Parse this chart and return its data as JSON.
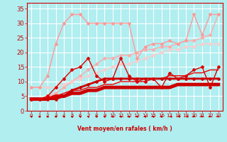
{
  "x": [
    0,
    1,
    2,
    3,
    4,
    5,
    6,
    7,
    8,
    9,
    10,
    11,
    12,
    13,
    14,
    15,
    16,
    17,
    18,
    19,
    20,
    21,
    22,
    23
  ],
  "lines": [
    {
      "y": [
        8,
        8,
        12,
        23,
        30,
        33,
        33,
        30,
        30,
        30,
        30,
        30,
        30,
        18,
        22,
        23,
        23,
        24,
        23,
        24,
        33,
        26,
        33,
        33
      ],
      "color": "#ff9999",
      "lw": 1.0,
      "marker": "D",
      "ms": 2.0,
      "zorder": 3
    },
    {
      "y": [
        4,
        4,
        5,
        6,
        8,
        10,
        12,
        14,
        16,
        18,
        18,
        19,
        19,
        20,
        21,
        21,
        22,
        22,
        23,
        24,
        24,
        25,
        26,
        33
      ],
      "color": "#ffaaaa",
      "lw": 1.0,
      "marker": "D",
      "ms": 2.0,
      "zorder": 2
    },
    {
      "y": [
        8,
        8,
        8,
        8,
        9,
        10,
        11,
        12,
        13,
        14,
        15,
        16,
        16,
        17,
        18,
        19,
        20,
        21,
        21,
        22,
        22,
        23,
        23,
        23
      ],
      "color": "#ffcccc",
      "lw": 1.0,
      "marker": "D",
      "ms": 2.0,
      "zorder": 2
    },
    {
      "y": [
        4,
        4,
        5,
        8,
        11,
        14,
        15,
        18,
        12,
        10,
        11,
        18,
        12,
        10,
        10,
        11,
        8,
        13,
        11,
        12,
        14,
        15,
        8,
        15
      ],
      "color": "#dd0000",
      "lw": 1.0,
      "marker": "D",
      "ms": 2.0,
      "zorder": 5
    },
    {
      "y": [
        4,
        4,
        4,
        4,
        5,
        7,
        8,
        9,
        10,
        11,
        11,
        11,
        11,
        11,
        11,
        11,
        11,
        11,
        11,
        11,
        11,
        11,
        11,
        11
      ],
      "color": "#cc0000",
      "lw": 2.0,
      "marker": "D",
      "ms": 2.0,
      "zorder": 4
    },
    {
      "y": [
        4,
        4,
        4,
        5,
        5,
        6,
        6,
        7,
        7,
        8,
        8,
        8,
        8,
        8,
        8,
        8,
        8,
        8,
        9,
        9,
        9,
        9,
        9,
        9
      ],
      "color": "#cc0000",
      "lw": 3.5,
      "marker": null,
      "ms": 0,
      "zorder": 3
    },
    {
      "y": [
        4,
        4,
        4,
        5,
        6,
        7,
        7,
        8,
        8,
        9,
        9,
        10,
        10,
        10,
        11,
        11,
        11,
        12,
        12,
        12,
        13,
        13,
        14,
        14
      ],
      "color": "#ee0000",
      "lw": 1.0,
      "marker": null,
      "ms": 0,
      "zorder": 3
    }
  ],
  "xlim": [
    -0.5,
    23.5
  ],
  "ylim": [
    0,
    37
  ],
  "yticks": [
    0,
    5,
    10,
    15,
    20,
    25,
    30,
    35
  ],
  "xticks": [
    0,
    1,
    2,
    3,
    4,
    5,
    6,
    7,
    8,
    9,
    10,
    11,
    12,
    13,
    14,
    15,
    16,
    17,
    18,
    19,
    20,
    21,
    22,
    23
  ],
  "xlabel": "Vent moyen/en rafales ( km/h )",
  "bg_color": "#b0eef0",
  "grid_color": "#ffffff",
  "tick_color": "#cc0000",
  "xlabel_color": "#cc0000"
}
